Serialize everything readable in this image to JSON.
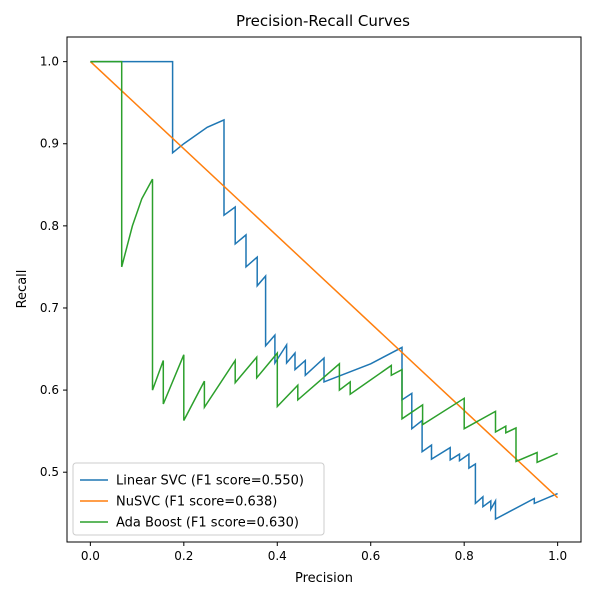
{
  "chart_data": {
    "type": "line",
    "title": "Precision-Recall Curves",
    "xlabel": "Precision",
    "ylabel": "Recall",
    "xlim": [
      -0.05,
      1.05
    ],
    "ylim": [
      0.415,
      1.03
    ],
    "xticks": [
      0.0,
      0.2,
      0.4,
      0.6,
      0.8,
      1.0
    ],
    "xtick_labels": [
      "0.0",
      "0.2",
      "0.4",
      "0.6",
      "0.8",
      "1.0"
    ],
    "yticks": [
      0.5,
      0.6,
      0.7,
      0.8,
      0.9,
      1.0
    ],
    "ytick_labels": [
      "0.5",
      "0.6",
      "0.7",
      "0.8",
      "0.9",
      "1.0"
    ],
    "grid": false,
    "legend_position": "lower-left",
    "series": [
      {
        "name": "Linear SVC (F1 score=0.550)",
        "color": "#1f77b4",
        "points": [
          [
            0.0,
            1.0
          ],
          [
            0.176,
            1.0
          ],
          [
            0.176,
            0.889
          ],
          [
            0.2,
            0.9
          ],
          [
            0.25,
            0.92
          ],
          [
            0.286,
            0.929
          ],
          [
            0.286,
            0.813
          ],
          [
            0.31,
            0.823
          ],
          [
            0.31,
            0.778
          ],
          [
            0.333,
            0.789
          ],
          [
            0.333,
            0.75
          ],
          [
            0.357,
            0.762
          ],
          [
            0.357,
            0.727
          ],
          [
            0.375,
            0.739
          ],
          [
            0.375,
            0.654
          ],
          [
            0.395,
            0.667
          ],
          [
            0.395,
            0.633
          ],
          [
            0.42,
            0.655
          ],
          [
            0.42,
            0.633
          ],
          [
            0.438,
            0.645
          ],
          [
            0.438,
            0.625
          ],
          [
            0.46,
            0.636
          ],
          [
            0.46,
            0.618
          ],
          [
            0.5,
            0.639
          ],
          [
            0.5,
            0.61
          ],
          [
            0.6,
            0.632
          ],
          [
            0.667,
            0.652
          ],
          [
            0.667,
            0.588
          ],
          [
            0.688,
            0.596
          ],
          [
            0.688,
            0.553
          ],
          [
            0.71,
            0.563
          ],
          [
            0.71,
            0.525
          ],
          [
            0.73,
            0.533
          ],
          [
            0.73,
            0.516
          ],
          [
            0.77,
            0.53
          ],
          [
            0.77,
            0.515
          ],
          [
            0.79,
            0.522
          ],
          [
            0.79,
            0.514
          ],
          [
            0.81,
            0.522
          ],
          [
            0.81,
            0.505
          ],
          [
            0.824,
            0.51
          ],
          [
            0.824,
            0.462
          ],
          [
            0.84,
            0.47
          ],
          [
            0.84,
            0.458
          ],
          [
            0.857,
            0.465
          ],
          [
            0.857,
            0.455
          ],
          [
            0.867,
            0.465
          ],
          [
            0.867,
            0.443
          ],
          [
            0.95,
            0.468
          ],
          [
            0.95,
            0.462
          ],
          [
            1.0,
            0.474
          ]
        ]
      },
      {
        "name": "NuSVC (F1 score=0.638)",
        "color": "#ff7f0e",
        "points": [
          [
            0.0,
            1.0
          ],
          [
            1.0,
            0.469
          ]
        ]
      },
      {
        "name": "Ada Boost (F1 score=0.630)",
        "color": "#2ca02c",
        "points": [
          [
            0.0,
            1.0
          ],
          [
            0.067,
            1.0
          ],
          [
            0.067,
            0.75
          ],
          [
            0.09,
            0.8
          ],
          [
            0.11,
            0.833
          ],
          [
            0.133,
            0.857
          ],
          [
            0.133,
            0.6
          ],
          [
            0.156,
            0.636
          ],
          [
            0.156,
            0.583
          ],
          [
            0.2,
            0.643
          ],
          [
            0.2,
            0.563
          ],
          [
            0.244,
            0.611
          ],
          [
            0.244,
            0.579
          ],
          [
            0.31,
            0.636
          ],
          [
            0.31,
            0.609
          ],
          [
            0.356,
            0.64
          ],
          [
            0.356,
            0.615
          ],
          [
            0.4,
            0.645
          ],
          [
            0.4,
            0.58
          ],
          [
            0.444,
            0.606
          ],
          [
            0.444,
            0.588
          ],
          [
            0.533,
            0.632
          ],
          [
            0.533,
            0.6
          ],
          [
            0.556,
            0.61
          ],
          [
            0.556,
            0.595
          ],
          [
            0.644,
            0.63
          ],
          [
            0.644,
            0.618
          ],
          [
            0.667,
            0.625
          ],
          [
            0.667,
            0.565
          ],
          [
            0.711,
            0.582
          ],
          [
            0.711,
            0.558
          ],
          [
            0.8,
            0.59
          ],
          [
            0.8,
            0.553
          ],
          [
            0.867,
            0.574
          ],
          [
            0.867,
            0.549
          ],
          [
            0.889,
            0.556
          ],
          [
            0.889,
            0.548
          ],
          [
            0.911,
            0.554
          ],
          [
            0.911,
            0.513
          ],
          [
            0.956,
            0.524
          ],
          [
            0.956,
            0.512
          ],
          [
            1.0,
            0.523
          ]
        ]
      }
    ]
  }
}
